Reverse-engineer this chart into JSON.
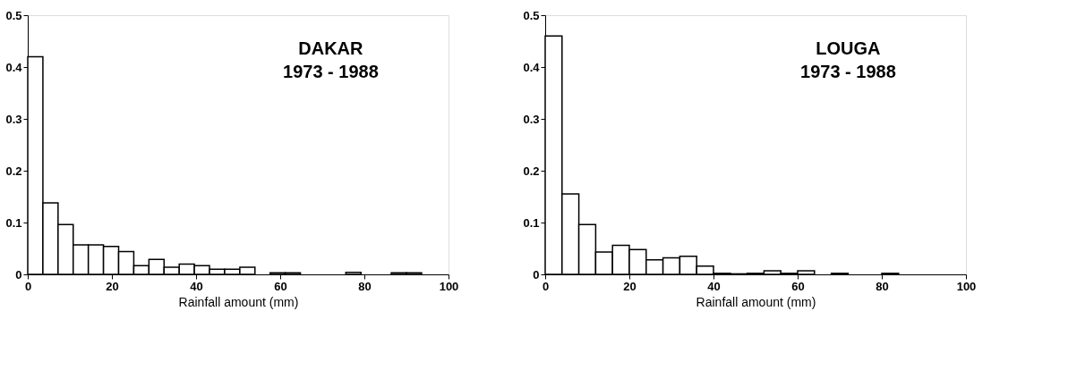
{
  "chart_data": [
    {
      "type": "histogram",
      "annotations": [
        "DAKAR",
        "1973 - 1988"
      ],
      "xlabel": "Rainfall amount (mm)",
      "bins": [
        0,
        3.6,
        7.2,
        10.8,
        14.4,
        18,
        21.6,
        25.2,
        28.8,
        32.4,
        36,
        39.6,
        43.2,
        46.8,
        50.4,
        54,
        57.6,
        61.2,
        64.8,
        68.4,
        72,
        75.6,
        79.2,
        82.8,
        86.4,
        90,
        93.6
      ],
      "values": [
        0.42,
        0.138,
        0.096,
        0.057,
        0.057,
        0.054,
        0.044,
        0.017,
        0.029,
        0.014,
        0.02,
        0.017,
        0.01,
        0.01,
        0.014,
        0,
        0.003,
        0.003,
        0,
        0,
        0,
        0.004,
        0,
        0,
        0.003,
        0.003
      ],
      "color": "#ffffff",
      "xlim": [
        0,
        100
      ],
      "xticks": [
        0,
        20,
        40,
        60,
        80,
        100
      ],
      "ylim": [
        0,
        0.5
      ],
      "yticks": [
        0,
        0.1,
        0.2,
        0.3,
        0.4,
        0.5
      ],
      "grid": false
    },
    {
      "type": "histogram",
      "annotations": [
        "LOUGA",
        "1973 - 1988"
      ],
      "xlabel": "Rainfall amount (mm)",
      "bins": [
        0,
        4,
        8,
        12,
        16,
        20,
        24,
        28,
        32,
        36,
        40,
        44,
        48,
        52,
        56,
        60,
        64,
        68,
        72,
        76,
        80,
        84
      ],
      "values": [
        0.46,
        0.155,
        0.096,
        0.043,
        0.056,
        0.048,
        0.028,
        0.032,
        0.035,
        0.016,
        0.002,
        0.001,
        0.002,
        0.007,
        0.002,
        0.007,
        0,
        0.002,
        0,
        0,
        0.002
      ],
      "color": "#ffffff",
      "xlim": [
        0,
        100
      ],
      "xticks": [
        0,
        20,
        40,
        60,
        80,
        100
      ],
      "ylim": [
        0,
        0.5
      ],
      "yticks": [
        0,
        0.1,
        0.2,
        0.3,
        0.4,
        0.5
      ],
      "grid": false
    }
  ]
}
